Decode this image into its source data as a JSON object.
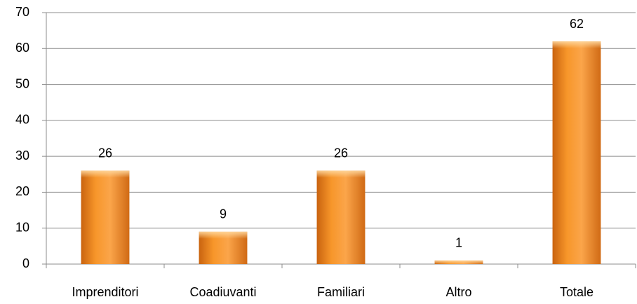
{
  "chart_data": {
    "type": "bar",
    "categories": [
      "Imprenditori",
      "Coadiuvanti",
      "Familiari",
      "Altro",
      "Totale"
    ],
    "values": [
      26,
      9,
      26,
      1,
      62
    ],
    "color": "#f7962a",
    "ylim": [
      0,
      70
    ],
    "yticks": [
      0,
      10,
      20,
      30,
      40,
      50,
      60,
      70
    ],
    "grid": true
  }
}
